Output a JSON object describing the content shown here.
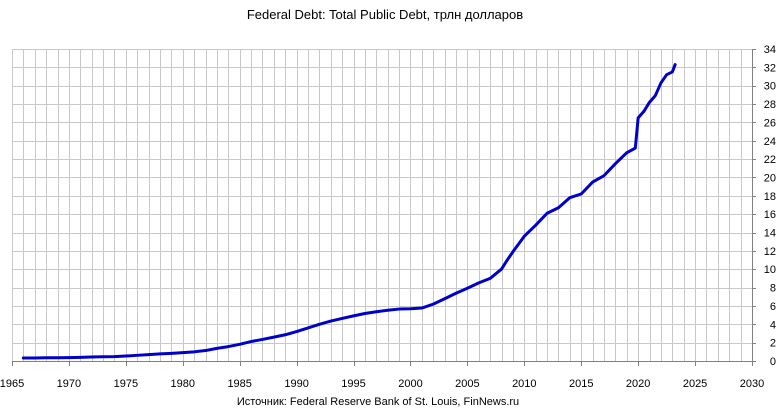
{
  "chart_data": {
    "type": "line",
    "title": "Federal Debt: Total Public Debt, трлн долларов",
    "source": "Источник: Federal Reserve Bank of St. Louis, FinNews.ru",
    "xlabel": "",
    "ylabel": "",
    "xlim": [
      1965,
      2030
    ],
    "ylim": [
      0,
      34
    ],
    "x_ticks": [
      1965,
      1970,
      1975,
      1980,
      1985,
      1990,
      1995,
      2000,
      2005,
      2010,
      2015,
      2020,
      2025,
      2030
    ],
    "x_tick_labels": [
      "1965",
      "1970",
      "1975",
      "1980",
      "1985",
      "1990",
      "1995",
      "2000",
      "2005",
      "2010",
      "2015",
      "2020",
      "2025",
      "2030"
    ],
    "y_ticks": [
      0,
      2,
      4,
      6,
      8,
      10,
      12,
      14,
      16,
      18,
      20,
      22,
      24,
      26,
      28,
      30,
      32,
      34
    ],
    "y_tick_labels": [
      "0",
      "2",
      "4",
      "6",
      "8",
      "10",
      "12",
      "14",
      "16",
      "18",
      "20",
      "22",
      "24",
      "26",
      "28",
      "30",
      "32",
      "34"
    ],
    "y_axis_side": "right",
    "grid": true,
    "legend": "none",
    "series_color": "#0000cc",
    "series": [
      {
        "x": [
          1966.0,
          1967.0,
          1968.0,
          1969.0,
          1970.0,
          1971.0,
          1972.0,
          1973.0,
          1974.0,
          1975.0,
          1976.0,
          1977.0,
          1978.0,
          1979.0,
          1980.0,
          1981.0,
          1982.0,
          1983.0,
          1984.0,
          1985.0,
          1986.0,
          1987.0,
          1988.0,
          1989.0,
          1990.0,
          1991.0,
          1992.0,
          1993.0,
          1994.0,
          1995.0,
          1996.0,
          1997.0,
          1998.0,
          1999.0,
          2000.0,
          2001.0,
          2002.0,
          2003.0,
          2004.0,
          2005.0,
          2006.0,
          2007.0,
          2008.0,
          2008.5,
          2009.0,
          2010.0,
          2011.0,
          2012.0,
          2013.0,
          2014.0,
          2015.0,
          2016.0,
          2017.0,
          2018.0,
          2019.0,
          2019.75,
          2020.0,
          2020.5,
          2021.0,
          2021.5,
          2022.0,
          2022.5,
          2023.0,
          2023.25
        ],
        "values": [
          0.32,
          0.33,
          0.35,
          0.36,
          0.37,
          0.4,
          0.43,
          0.46,
          0.48,
          0.54,
          0.62,
          0.7,
          0.77,
          0.83,
          0.91,
          1.0,
          1.14,
          1.38,
          1.57,
          1.82,
          2.12,
          2.35,
          2.6,
          2.86,
          3.21,
          3.6,
          4.0,
          4.35,
          4.64,
          4.92,
          5.18,
          5.37,
          5.53,
          5.66,
          5.7,
          5.77,
          6.2,
          6.78,
          7.38,
          7.93,
          8.51,
          9.0,
          10.02,
          11.0,
          11.9,
          13.6,
          14.8,
          16.1,
          16.7,
          17.8,
          18.2,
          19.5,
          20.2,
          21.5,
          22.7,
          23.2,
          26.5,
          27.2,
          28.2,
          28.9,
          30.3,
          31.2,
          31.5,
          32.3
        ]
      }
    ]
  }
}
